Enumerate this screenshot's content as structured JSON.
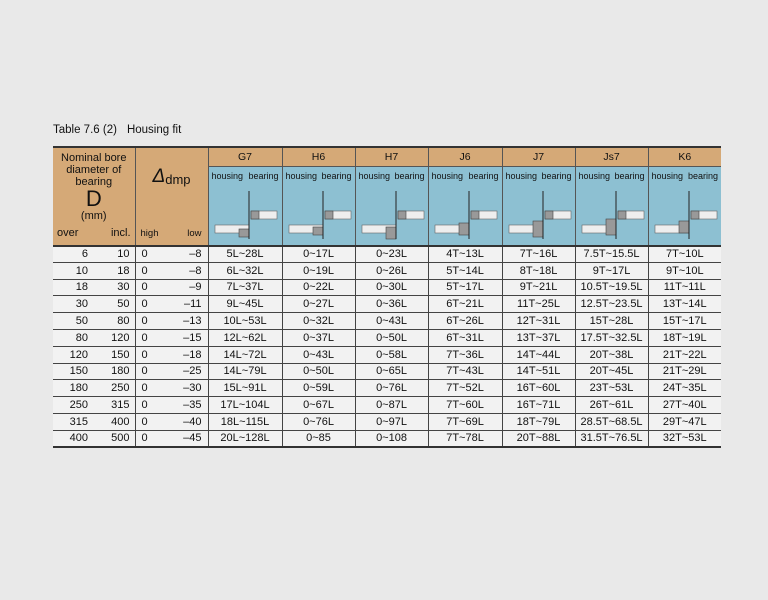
{
  "title": {
    "number": "Table 7.6 (2)",
    "text": "Housing fit"
  },
  "header": {
    "nominal_lines": [
      "Nominal bore",
      "diameter of",
      "bearing"
    ],
    "D": "D",
    "mm": "(mm)",
    "over": "over",
    "incl": "incl.",
    "delta_symbol": "Δ",
    "delta_sub": "dmp",
    "high": "high",
    "low": "low",
    "housing": "housing",
    "bearing": "bearing",
    "fits": [
      "G7",
      "H6",
      "H7",
      "J6",
      "J7",
      "Js7",
      "K6"
    ]
  },
  "colors": {
    "header_tan": "#d5a977",
    "header_blue": "#8dc0d2",
    "body": "#f2f2f2",
    "background": "#e9e9e9"
  },
  "rows": [
    {
      "over": "6",
      "incl": "10",
      "high": "0",
      "low": "–8",
      "fits": [
        "5L~28L",
        "0~17L",
        "0~23L",
        "4T~13L",
        "7T~16L",
        "7.5T~15.5L",
        "7T~10L"
      ]
    },
    {
      "over": "10",
      "incl": "18",
      "high": "0",
      "low": "–8",
      "fits": [
        "6L~32L",
        "0~19L",
        "0~26L",
        "5T~14L",
        "8T~18L",
        "9T~17L",
        "9T~10L"
      ]
    },
    {
      "over": "18",
      "incl": "30",
      "high": "0",
      "low": "–9",
      "fits": [
        "7L~37L",
        "0~22L",
        "0~30L",
        "5T~17L",
        "9T~21L",
        "10.5T~19.5L",
        "11T~11L"
      ]
    },
    {
      "over": "30",
      "incl": "50",
      "high": "0",
      "low": "–11",
      "fits": [
        "9L~45L",
        "0~27L",
        "0~36L",
        "6T~21L",
        "11T~25L",
        "12.5T~23.5L",
        "13T~14L"
      ]
    },
    {
      "over": "50",
      "incl": "80",
      "high": "0",
      "low": "–13",
      "fits": [
        "10L~53L",
        "0~32L",
        "0~43L",
        "6T~26L",
        "12T~31L",
        "15T~28L",
        "15T~17L"
      ]
    },
    {
      "over": "80",
      "incl": "120",
      "high": "0",
      "low": "–15",
      "fits": [
        "12L~62L",
        "0~37L",
        "0~50L",
        "6T~31L",
        "13T~37L",
        "17.5T~32.5L",
        "18T~19L"
      ]
    },
    {
      "over": "120",
      "incl": "150",
      "high": "0",
      "low": "–18",
      "fits": [
        "14L~72L",
        "0~43L",
        "0~58L",
        "7T~36L",
        "14T~44L",
        "20T~38L",
        "21T~22L"
      ]
    },
    {
      "over": "150",
      "incl": "180",
      "high": "0",
      "low": "–25",
      "fits": [
        "14L~79L",
        "0~50L",
        "0~65L",
        "7T~43L",
        "14T~51L",
        "20T~45L",
        "21T~29L"
      ]
    },
    {
      "over": "180",
      "incl": "250",
      "high": "0",
      "low": "–30",
      "fits": [
        "15L~91L",
        "0~59L",
        "0~76L",
        "7T~52L",
        "16T~60L",
        "23T~53L",
        "24T~35L"
      ]
    },
    {
      "over": "250",
      "incl": "315",
      "high": "0",
      "low": "–35",
      "fits": [
        "17L~104L",
        "0~67L",
        "0~87L",
        "7T~60L",
        "16T~71L",
        "26T~61L",
        "27T~40L"
      ]
    },
    {
      "over": "315",
      "incl": "400",
      "high": "0",
      "low": "–40",
      "fits": [
        "18L~115L",
        "0~76L",
        "0~97L",
        "7T~69L",
        "18T~79L",
        "28.5T~68.5L",
        "29T~47L"
      ]
    },
    {
      "over": "400",
      "incl": "500",
      "high": "0",
      "low": "–45",
      "fits": [
        "20L~128L",
        "0~85",
        "0~108",
        "7T~78L",
        "20T~88L",
        "31.5T~76.5L",
        "32T~53L"
      ]
    }
  ]
}
